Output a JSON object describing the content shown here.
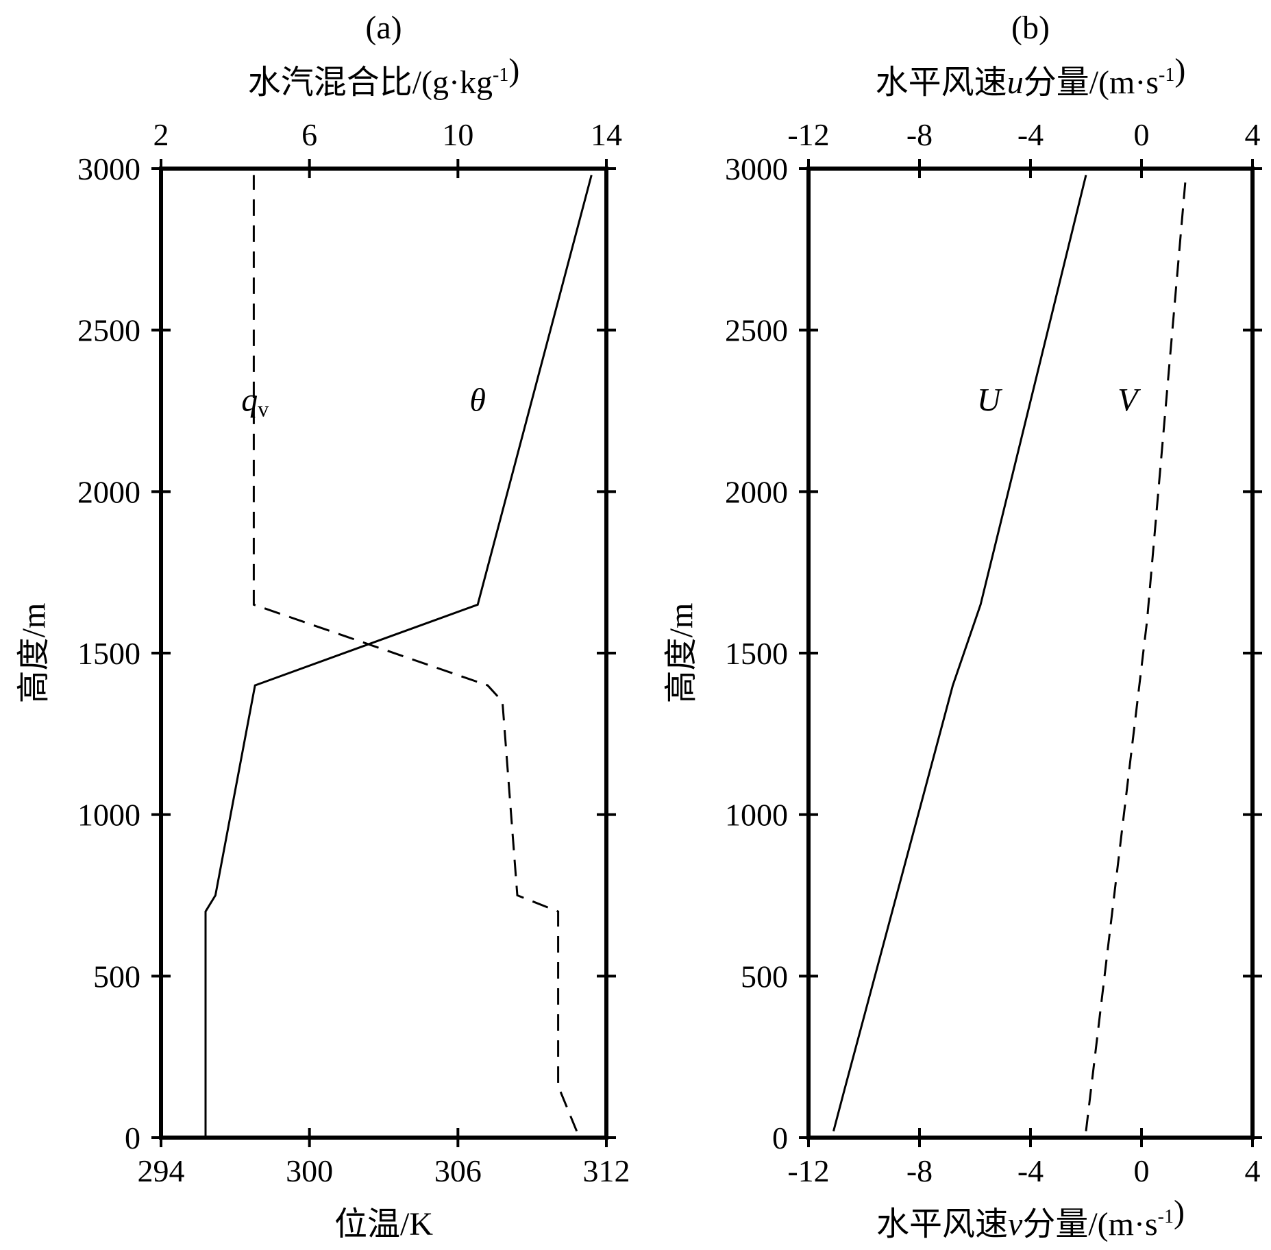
{
  "chart_data": [
    {
      "type": "line",
      "panel_label": "(a)",
      "ylabel": "高度/m",
      "ylim": [
        0,
        3000
      ],
      "yticks": [
        "0",
        "500",
        "1000",
        "1500",
        "2000",
        "2500",
        "3000"
      ],
      "x_bottom": {
        "label": "位温/K",
        "lim": [
          294,
          312
        ],
        "ticks": [
          "294",
          "300",
          "306",
          "312"
        ]
      },
      "x_top": {
        "label": "水汽混合比/(g·kg⁻¹)",
        "lim": [
          2,
          14
        ],
        "ticks": [
          "2",
          "6",
          "10",
          "14"
        ]
      },
      "series": [
        {
          "name": "θ",
          "axis": "bottom",
          "style": "solid",
          "points": [
            [
              295.8,
              0
            ],
            [
              295.8,
              700
            ],
            [
              296.2,
              750
            ],
            [
              297.8,
              1400
            ],
            [
              306.8,
              1650
            ],
            [
              311.4,
              2980
            ]
          ]
        },
        {
          "name": "qv",
          "axis": "top",
          "style": "dashed",
          "points": [
            [
              13.2,
              20
            ],
            [
              12.7,
              160
            ],
            [
              12.7,
              700
            ],
            [
              11.6,
              750
            ],
            [
              11.2,
              1350
            ],
            [
              10.8,
              1400
            ],
            [
              4.5,
              1650
            ],
            [
              4.5,
              2980
            ]
          ]
        }
      ],
      "annotations": [
        {
          "text": "q",
          "sub": "v",
          "x": 297.8,
          "y": 2250,
          "axis": "bottom"
        },
        {
          "text": "θ",
          "x": 306.8,
          "y": 2250,
          "axis": "bottom"
        }
      ]
    },
    {
      "type": "line",
      "panel_label": "(b)",
      "ylabel": "高度/m",
      "ylim": [
        0,
        3000
      ],
      "yticks": [
        "0",
        "500",
        "1000",
        "1500",
        "2000",
        "2500",
        "3000"
      ],
      "x_bottom": {
        "label": "水平风速v分量/(m·s⁻¹)",
        "lim": [
          -12,
          4
        ],
        "ticks": [
          "-12",
          "-8",
          "-4",
          "0",
          "4"
        ]
      },
      "x_top": {
        "label": "水平风速u分量/(m·s⁻¹)",
        "lim": [
          -12,
          4
        ],
        "ticks": [
          "-12",
          "-8",
          "-4",
          "0",
          "4"
        ]
      },
      "series": [
        {
          "name": "U",
          "axis": "top",
          "style": "solid",
          "points": [
            [
              -11.1,
              20
            ],
            [
              -10.7,
              150
            ],
            [
              -6.8,
              1400
            ],
            [
              -5.8,
              1650
            ],
            [
              -2.0,
              2980
            ]
          ]
        },
        {
          "name": "V",
          "axis": "bottom",
          "style": "dashed",
          "points": [
            [
              -2.0,
              20
            ],
            [
              0.2,
              1600
            ],
            [
              1.6,
              2980
            ]
          ]
        }
      ],
      "annotations": [
        {
          "text": "U",
          "x": -5.5,
          "y": 2250,
          "axis": "top"
        },
        {
          "text": "V",
          "x": -0.5,
          "y": 2250,
          "axis": "bottom"
        }
      ]
    }
  ]
}
